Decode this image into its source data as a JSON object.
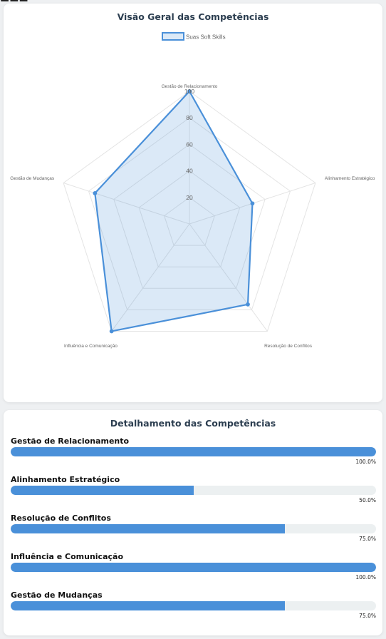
{
  "radar_card": {
    "title": "Visão Geral das Competências"
  },
  "detail_card": {
    "title": "Detalhamento das Competências"
  },
  "chart_data": {
    "type": "radar",
    "title": "Visão Geral das Competências",
    "axes": [
      "Gestão de Relacionamento",
      "Alinhamento Estratégico",
      "Resolução de Conflitos",
      "Influência e Comunicação",
      "Gestão de Mudanças"
    ],
    "series": [
      {
        "name": "Suas Soft Skills",
        "values": [
          100,
          50,
          75,
          100,
          75
        ]
      }
    ],
    "rlim": [
      0,
      100
    ],
    "ticks": [
      20,
      40,
      60,
      80,
      100
    ],
    "legend": "top",
    "color": "#4a90d9",
    "fill": "rgba(74,144,217,0.2)"
  },
  "details": [
    {
      "name": "Gestão de Relacionamento",
      "fraction": 1.0,
      "percent": "100.0%"
    },
    {
      "name": "Alinhamento Estratégico",
      "fraction": 0.5,
      "percent": "50.0%"
    },
    {
      "name": "Resolução de Conflitos",
      "fraction": 0.75,
      "percent": "75.0%"
    },
    {
      "name": "Influência e Comunicação",
      "fraction": 1.0,
      "percent": "100.0%"
    },
    {
      "name": "Gestão de Mudanças",
      "fraction": 0.75,
      "percent": "75.0%"
    }
  ]
}
